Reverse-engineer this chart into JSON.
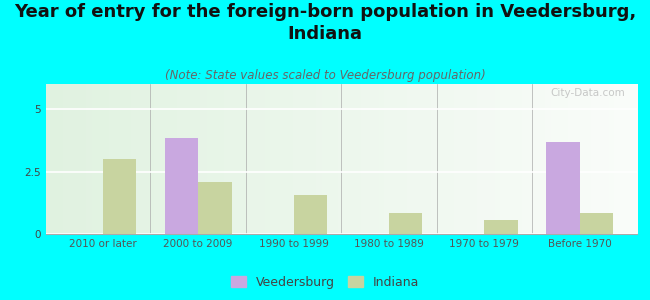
{
  "title": "Year of entry for the foreign-born population in Veedersburg,\nIndiana",
  "subtitle": "(Note: State values scaled to Veedersburg population)",
  "categories": [
    "2010 or later",
    "2000 to 2009",
    "1990 to 1999",
    "1980 to 1989",
    "1970 to 1979",
    "Before 1970"
  ],
  "veedersburg": [
    0,
    3.85,
    0,
    0,
    0,
    3.7
  ],
  "indiana": [
    3.0,
    2.1,
    1.55,
    0.85,
    0.55,
    0.85
  ],
  "veedersburg_color": "#c9a8e0",
  "indiana_color": "#c8d4a0",
  "background_color": "#00ffff",
  "ylim": [
    0,
    6
  ],
  "yticks": [
    0,
    2.5,
    5
  ],
  "bar_width": 0.35,
  "title_fontsize": 13,
  "subtitle_fontsize": 8.5,
  "tick_fontsize": 7.5,
  "legend_fontsize": 9,
  "watermark": "City-Data.com"
}
